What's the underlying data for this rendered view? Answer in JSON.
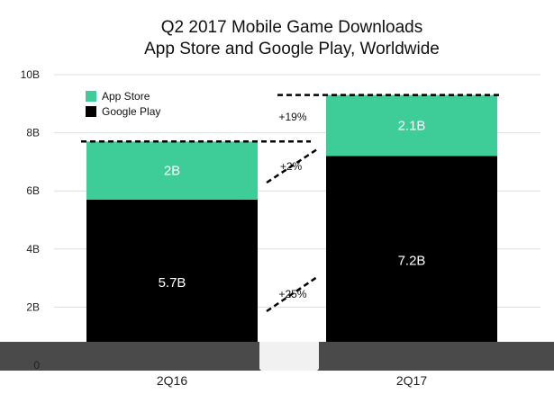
{
  "chart_data": {
    "type": "bar",
    "stacked": true,
    "title": "Q2 2017 Mobile Game Downloads",
    "subtitle": "App Store and Google Play, Worldwide",
    "categories": [
      "2Q16",
      "2Q17"
    ],
    "series": [
      {
        "name": "Google Play",
        "values": [
          5.7,
          7.2
        ],
        "labels": [
          "5.7B",
          "7.2B"
        ],
        "color": "#000000"
      },
      {
        "name": "App Store",
        "values": [
          2.0,
          2.1
        ],
        "labels": [
          "2B",
          "2.1B"
        ],
        "color": "#3ECC98"
      }
    ],
    "ylim": [
      0,
      10
    ],
    "yticks": [
      0,
      2,
      4,
      6,
      8,
      10
    ],
    "ytick_labels": [
      "0",
      "2B",
      "4B",
      "6B",
      "8B",
      "10B"
    ],
    "grid": true,
    "legend": {
      "position": "top-left"
    },
    "annotations": [
      "+19%",
      "+2%",
      "+25%"
    ]
  }
}
